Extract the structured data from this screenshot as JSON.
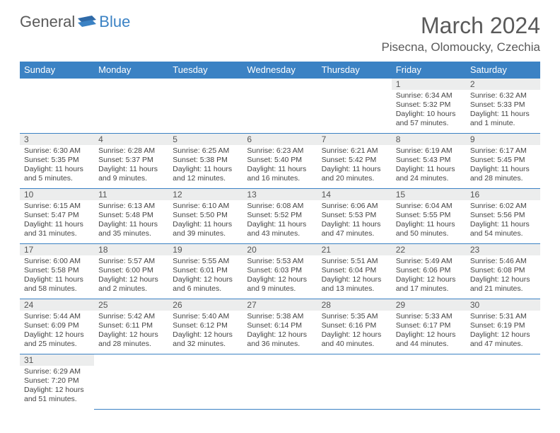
{
  "brand": {
    "part1": "General",
    "part2": "Blue"
  },
  "title": "March 2024",
  "location": "Pisecna, Olomoucky, Czechia",
  "colors": {
    "header_bg": "#3b82c4",
    "header_text": "#ffffff",
    "daynum_bg": "#eceded",
    "text": "#444444",
    "border": "#3b82c4"
  },
  "day_names": [
    "Sunday",
    "Monday",
    "Tuesday",
    "Wednesday",
    "Thursday",
    "Friday",
    "Saturday"
  ],
  "weeks": [
    [
      null,
      null,
      null,
      null,
      null,
      {
        "n": "1",
        "sunrise": "Sunrise: 6:34 AM",
        "sunset": "Sunset: 5:32 PM",
        "daylight": "Daylight: 10 hours and 57 minutes."
      },
      {
        "n": "2",
        "sunrise": "Sunrise: 6:32 AM",
        "sunset": "Sunset: 5:33 PM",
        "daylight": "Daylight: 11 hours and 1 minute."
      }
    ],
    [
      {
        "n": "3",
        "sunrise": "Sunrise: 6:30 AM",
        "sunset": "Sunset: 5:35 PM",
        "daylight": "Daylight: 11 hours and 5 minutes."
      },
      {
        "n": "4",
        "sunrise": "Sunrise: 6:28 AM",
        "sunset": "Sunset: 5:37 PM",
        "daylight": "Daylight: 11 hours and 9 minutes."
      },
      {
        "n": "5",
        "sunrise": "Sunrise: 6:25 AM",
        "sunset": "Sunset: 5:38 PM",
        "daylight": "Daylight: 11 hours and 12 minutes."
      },
      {
        "n": "6",
        "sunrise": "Sunrise: 6:23 AM",
        "sunset": "Sunset: 5:40 PM",
        "daylight": "Daylight: 11 hours and 16 minutes."
      },
      {
        "n": "7",
        "sunrise": "Sunrise: 6:21 AM",
        "sunset": "Sunset: 5:42 PM",
        "daylight": "Daylight: 11 hours and 20 minutes."
      },
      {
        "n": "8",
        "sunrise": "Sunrise: 6:19 AM",
        "sunset": "Sunset: 5:43 PM",
        "daylight": "Daylight: 11 hours and 24 minutes."
      },
      {
        "n": "9",
        "sunrise": "Sunrise: 6:17 AM",
        "sunset": "Sunset: 5:45 PM",
        "daylight": "Daylight: 11 hours and 28 minutes."
      }
    ],
    [
      {
        "n": "10",
        "sunrise": "Sunrise: 6:15 AM",
        "sunset": "Sunset: 5:47 PM",
        "daylight": "Daylight: 11 hours and 31 minutes."
      },
      {
        "n": "11",
        "sunrise": "Sunrise: 6:13 AM",
        "sunset": "Sunset: 5:48 PM",
        "daylight": "Daylight: 11 hours and 35 minutes."
      },
      {
        "n": "12",
        "sunrise": "Sunrise: 6:10 AM",
        "sunset": "Sunset: 5:50 PM",
        "daylight": "Daylight: 11 hours and 39 minutes."
      },
      {
        "n": "13",
        "sunrise": "Sunrise: 6:08 AM",
        "sunset": "Sunset: 5:52 PM",
        "daylight": "Daylight: 11 hours and 43 minutes."
      },
      {
        "n": "14",
        "sunrise": "Sunrise: 6:06 AM",
        "sunset": "Sunset: 5:53 PM",
        "daylight": "Daylight: 11 hours and 47 minutes."
      },
      {
        "n": "15",
        "sunrise": "Sunrise: 6:04 AM",
        "sunset": "Sunset: 5:55 PM",
        "daylight": "Daylight: 11 hours and 50 minutes."
      },
      {
        "n": "16",
        "sunrise": "Sunrise: 6:02 AM",
        "sunset": "Sunset: 5:56 PM",
        "daylight": "Daylight: 11 hours and 54 minutes."
      }
    ],
    [
      {
        "n": "17",
        "sunrise": "Sunrise: 6:00 AM",
        "sunset": "Sunset: 5:58 PM",
        "daylight": "Daylight: 11 hours and 58 minutes."
      },
      {
        "n": "18",
        "sunrise": "Sunrise: 5:57 AM",
        "sunset": "Sunset: 6:00 PM",
        "daylight": "Daylight: 12 hours and 2 minutes."
      },
      {
        "n": "19",
        "sunrise": "Sunrise: 5:55 AM",
        "sunset": "Sunset: 6:01 PM",
        "daylight": "Daylight: 12 hours and 6 minutes."
      },
      {
        "n": "20",
        "sunrise": "Sunrise: 5:53 AM",
        "sunset": "Sunset: 6:03 PM",
        "daylight": "Daylight: 12 hours and 9 minutes."
      },
      {
        "n": "21",
        "sunrise": "Sunrise: 5:51 AM",
        "sunset": "Sunset: 6:04 PM",
        "daylight": "Daylight: 12 hours and 13 minutes."
      },
      {
        "n": "22",
        "sunrise": "Sunrise: 5:49 AM",
        "sunset": "Sunset: 6:06 PM",
        "daylight": "Daylight: 12 hours and 17 minutes."
      },
      {
        "n": "23",
        "sunrise": "Sunrise: 5:46 AM",
        "sunset": "Sunset: 6:08 PM",
        "daylight": "Daylight: 12 hours and 21 minutes."
      }
    ],
    [
      {
        "n": "24",
        "sunrise": "Sunrise: 5:44 AM",
        "sunset": "Sunset: 6:09 PM",
        "daylight": "Daylight: 12 hours and 25 minutes."
      },
      {
        "n": "25",
        "sunrise": "Sunrise: 5:42 AM",
        "sunset": "Sunset: 6:11 PM",
        "daylight": "Daylight: 12 hours and 28 minutes."
      },
      {
        "n": "26",
        "sunrise": "Sunrise: 5:40 AM",
        "sunset": "Sunset: 6:12 PM",
        "daylight": "Daylight: 12 hours and 32 minutes."
      },
      {
        "n": "27",
        "sunrise": "Sunrise: 5:38 AM",
        "sunset": "Sunset: 6:14 PM",
        "daylight": "Daylight: 12 hours and 36 minutes."
      },
      {
        "n": "28",
        "sunrise": "Sunrise: 5:35 AM",
        "sunset": "Sunset: 6:16 PM",
        "daylight": "Daylight: 12 hours and 40 minutes."
      },
      {
        "n": "29",
        "sunrise": "Sunrise: 5:33 AM",
        "sunset": "Sunset: 6:17 PM",
        "daylight": "Daylight: 12 hours and 44 minutes."
      },
      {
        "n": "30",
        "sunrise": "Sunrise: 5:31 AM",
        "sunset": "Sunset: 6:19 PM",
        "daylight": "Daylight: 12 hours and 47 minutes."
      }
    ],
    [
      {
        "n": "31",
        "sunrise": "Sunrise: 6:29 AM",
        "sunset": "Sunset: 7:20 PM",
        "daylight": "Daylight: 12 hours and 51 minutes."
      },
      null,
      null,
      null,
      null,
      null,
      null
    ]
  ]
}
